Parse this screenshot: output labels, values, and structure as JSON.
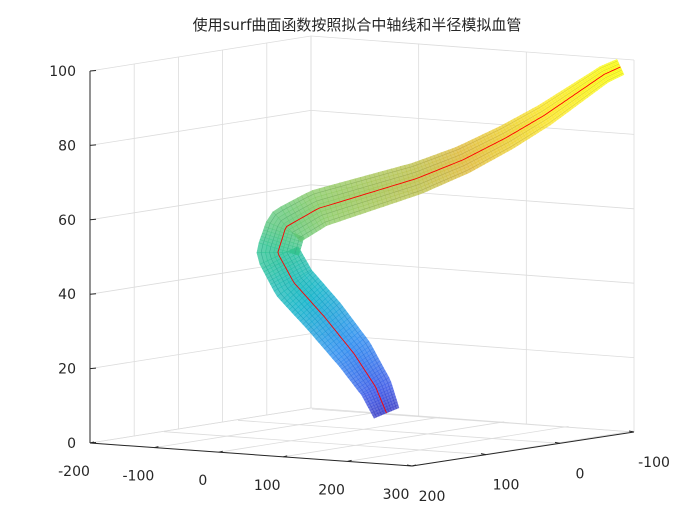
{
  "chart_data": {
    "type": "surface3d",
    "title": "使用surf曲面函数按照拟合中轴线和半径模拟血管",
    "xlabel": "",
    "ylabel": "",
    "zlabel": "",
    "xlim": [
      -200,
      300
    ],
    "ylim": [
      -100,
      200
    ],
    "zlim": [
      0,
      100
    ],
    "x_ticks": [
      "-200",
      "-100",
      "0",
      "100",
      "200",
      "300"
    ],
    "y_ticks": [
      "-100",
      "0",
      "100",
      "200"
    ],
    "z_ticks": [
      "0",
      "20",
      "40",
      "60",
      "80",
      "100"
    ],
    "grid": true,
    "colormap": "parula",
    "colormap_stops": [
      "#3e26a8",
      "#3e5be8",
      "#2c8ef0",
      "#0fb3c8",
      "#2ec495",
      "#8cca63",
      "#dfbb3c",
      "#fbe72a",
      "#f9fb15"
    ],
    "centerline_color": "#ff0000",
    "centerline": [
      {
        "t": 0.0,
        "u": 0.545,
        "z": 7
      },
      {
        "t": 0.06,
        "u": 0.525,
        "z": 14
      },
      {
        "t": 0.13,
        "u": 0.485,
        "z": 23
      },
      {
        "t": 0.2,
        "u": 0.43,
        "z": 33
      },
      {
        "t": 0.27,
        "u": 0.375,
        "z": 42
      },
      {
        "t": 0.33,
        "u": 0.345,
        "z": 50
      },
      {
        "t": 0.38,
        "u": 0.36,
        "z": 57
      },
      {
        "t": 0.43,
        "u": 0.42,
        "z": 62
      },
      {
        "t": 0.49,
        "u": 0.51,
        "z": 66
      },
      {
        "t": 0.56,
        "u": 0.6,
        "z": 70
      },
      {
        "t": 0.64,
        "u": 0.685,
        "z": 75
      },
      {
        "t": 0.72,
        "u": 0.765,
        "z": 81
      },
      {
        "t": 0.8,
        "u": 0.835,
        "z": 87
      },
      {
        "t": 0.88,
        "u": 0.895,
        "z": 93
      },
      {
        "t": 0.95,
        "u": 0.945,
        "z": 98
      },
      {
        "t": 1.0,
        "u": 0.975,
        "z": 100
      }
    ],
    "radius_profile": [
      0.045,
      0.055,
      0.065,
      0.07,
      0.072,
      0.07,
      0.066,
      0.06,
      0.055,
      0.05,
      0.046,
      0.042,
      0.038,
      0.034,
      0.03,
      0.028
    ]
  }
}
